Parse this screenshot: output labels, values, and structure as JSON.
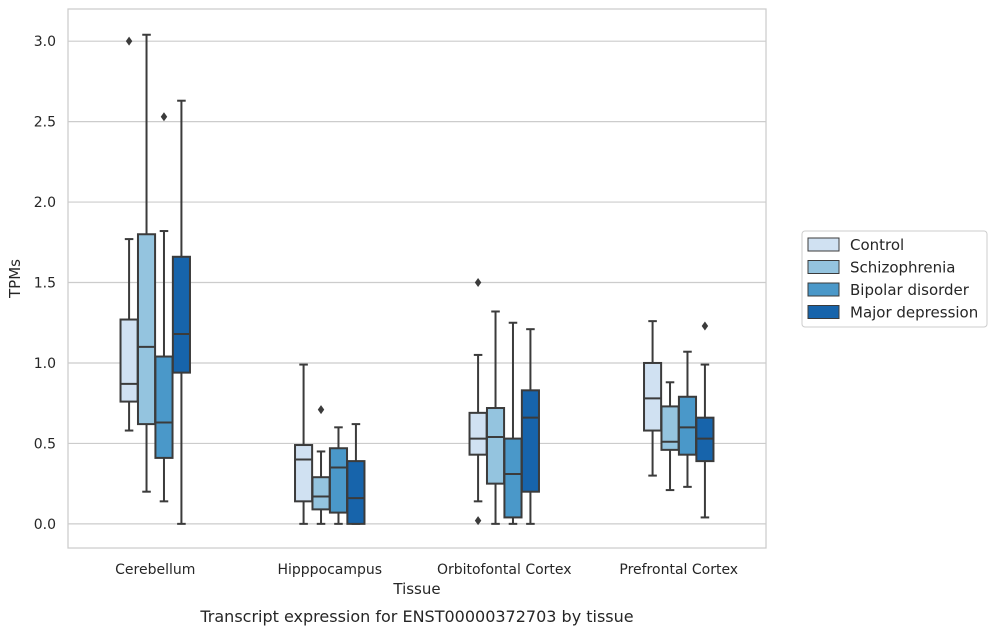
{
  "caption": "Transcript expression for ENST00000372703 by tissue",
  "chart_data": {
    "type": "box",
    "xlabel": "Tissue",
    "ylabel": "TPMs",
    "ylim": [
      -0.15,
      3.2
    ],
    "y_ticks": [
      "0.0",
      "0.5",
      "1.0",
      "1.5",
      "2.0",
      "2.5",
      "3.0"
    ],
    "grid": "horizontal",
    "legend_position": "right",
    "categories": [
      "Cerebellum",
      "Hipppocampus",
      "Orbitofontal Cortex",
      "Prefrontal Cortex"
    ],
    "series": [
      {
        "name": "Control",
        "color": "#d0e1f2",
        "boxes": [
          {
            "whisker_low": 0.58,
            "q1": 0.76,
            "median": 0.87,
            "q3": 1.27,
            "whisker_high": 1.77,
            "outliers": [
              3.0
            ]
          },
          {
            "whisker_low": 0.0,
            "q1": 0.14,
            "median": 0.4,
            "q3": 0.49,
            "whisker_high": 0.99,
            "outliers": []
          },
          {
            "whisker_low": 0.14,
            "q1": 0.43,
            "median": 0.53,
            "q3": 0.69,
            "whisker_high": 1.05,
            "outliers": [
              1.5,
              0.02
            ]
          },
          {
            "whisker_low": 0.3,
            "q1": 0.58,
            "median": 0.78,
            "q3": 1.0,
            "whisker_high": 1.26,
            "outliers": []
          }
        ]
      },
      {
        "name": "Schizophrenia",
        "color": "#94c4df",
        "boxes": [
          {
            "whisker_low": 0.2,
            "q1": 0.62,
            "median": 1.1,
            "q3": 1.8,
            "whisker_high": 3.04,
            "outliers": []
          },
          {
            "whisker_low": 0.0,
            "q1": 0.09,
            "median": 0.17,
            "q3": 0.29,
            "whisker_high": 0.45,
            "outliers": [
              0.71
            ]
          },
          {
            "whisker_low": 0.0,
            "q1": 0.25,
            "median": 0.54,
            "q3": 0.72,
            "whisker_high": 1.32,
            "outliers": []
          },
          {
            "whisker_low": 0.21,
            "q1": 0.46,
            "median": 0.51,
            "q3": 0.73,
            "whisker_high": 0.88,
            "outliers": []
          }
        ]
      },
      {
        "name": "Bipolar disorder",
        "color": "#4a98c9",
        "boxes": [
          {
            "whisker_low": 0.14,
            "q1": 0.41,
            "median": 0.63,
            "q3": 1.04,
            "whisker_high": 1.82,
            "outliers": [
              2.53
            ]
          },
          {
            "whisker_low": 0.0,
            "q1": 0.07,
            "median": 0.35,
            "q3": 0.47,
            "whisker_high": 0.6,
            "outliers": []
          },
          {
            "whisker_low": 0.0,
            "q1": 0.04,
            "median": 0.31,
            "q3": 0.53,
            "whisker_high": 1.25,
            "outliers": []
          },
          {
            "whisker_low": 0.23,
            "q1": 0.43,
            "median": 0.6,
            "q3": 0.79,
            "whisker_high": 1.07,
            "outliers": []
          }
        ]
      },
      {
        "name": "Major depression",
        "color": "#1764ab",
        "boxes": [
          {
            "whisker_low": 0.0,
            "q1": 0.94,
            "median": 1.18,
            "q3": 1.66,
            "whisker_high": 2.63,
            "outliers": []
          },
          {
            "whisker_low": 0.0,
            "q1": 0.0,
            "median": 0.16,
            "q3": 0.39,
            "whisker_high": 0.62,
            "outliers": []
          },
          {
            "whisker_low": 0.0,
            "q1": 0.2,
            "median": 0.66,
            "q3": 0.83,
            "whisker_high": 1.21,
            "outliers": []
          },
          {
            "whisker_low": 0.04,
            "q1": 0.39,
            "median": 0.53,
            "q3": 0.66,
            "whisker_high": 0.99,
            "outliers": [
              1.23
            ]
          }
        ]
      }
    ]
  }
}
